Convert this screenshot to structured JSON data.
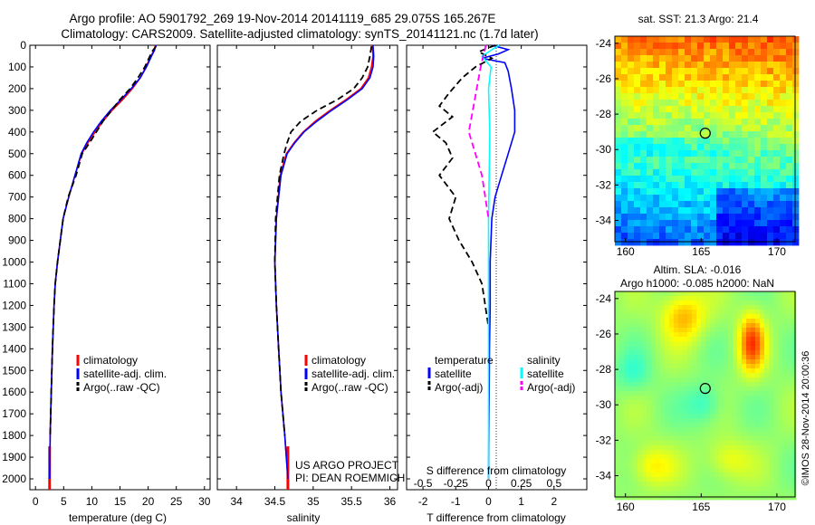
{
  "title_line1": "Argo profile: AO 5901792_269 19-Nov-2014 20141119_685 29.075S 165.267E",
  "title_line2": "Climatology: CARS2009. Satellite-adjusted climatology: synTS_20141121.nc (1.7d later)",
  "sst_title": "sat. SST: 21.3 Argo: 21.4",
  "sla_title1": "Altim. SLA: -0.016",
  "sla_title2": "Argo h1000: -0.085 h2000: NaN",
  "credit": "©IMOS 28-Nov-2014 20:00:36",
  "project_line1": "US ARGO PROJECT",
  "project_line2": "PI: DEAN ROEMMICH",
  "colors": {
    "climatology": "#ff0000",
    "satellite": "#0000ff",
    "argo": "#000000",
    "argo_s": "#ff00ff",
    "sat_s": "#00ffff"
  },
  "chart_data": [
    {
      "type": "line",
      "panel": "temperature",
      "xlabel": "temperature (deg C)",
      "ylim": [
        2050,
        0
      ],
      "xlim": [
        -1,
        31
      ],
      "xticks": [
        0,
        5,
        10,
        15,
        20,
        25,
        30
      ],
      "yticks": [
        0,
        100,
        200,
        300,
        400,
        500,
        600,
        700,
        800,
        900,
        1000,
        1100,
        1200,
        1300,
        1400,
        1500,
        1600,
        1700,
        1800,
        1900,
        2000
      ],
      "legend": [
        "climatology",
        "satellite-adj. clim.",
        "Argo(..raw -QC)"
      ],
      "series": [
        {
          "name": "climatology",
          "style": "solid",
          "color": "#ff0000",
          "x": [
            21.3,
            21.0,
            20.5,
            19.6,
            18.6,
            17.2,
            15.5,
            13.6,
            12.0,
            10.6,
            9.3,
            8.2,
            7.0,
            5.9,
            4.9,
            3.9,
            3.5,
            3.3,
            3.0,
            2.8,
            2.6,
            2.5
          ],
          "y": [
            0,
            25,
            50,
            100,
            150,
            200,
            250,
            300,
            350,
            400,
            450,
            500,
            600,
            700,
            800,
            1000,
            1100,
            1200,
            1400,
            1600,
            1800,
            2000
          ]
        },
        {
          "name": "satellite-adj. clim.",
          "style": "solid",
          "color": "#0000ff",
          "x": [
            21.4,
            21.1,
            20.6,
            19.7,
            18.6,
            17.0,
            15.2,
            13.3,
            11.7,
            10.3,
            9.1,
            8.1,
            7.0,
            5.9,
            4.9,
            3.9,
            3.5,
            3.3,
            3.0,
            2.8,
            2.6,
            2.5
          ],
          "y": [
            0,
            25,
            50,
            100,
            150,
            200,
            250,
            300,
            350,
            400,
            450,
            500,
            600,
            700,
            800,
            1000,
            1100,
            1200,
            1400,
            1600,
            1800,
            2000
          ]
        },
        {
          "name": "Argo(..raw -QC)",
          "style": "dash",
          "color": "#000000",
          "x": [
            21.4,
            20.8,
            20.3,
            19.4,
            18.2,
            16.8,
            15.0,
            13.5,
            12.0,
            10.8,
            9.6,
            8.3,
            7.2,
            5.8,
            4.9,
            3.9,
            3.5,
            3.3,
            3.0,
            2.8,
            2.6
          ],
          "y": [
            5,
            25,
            50,
            100,
            150,
            200,
            250,
            300,
            350,
            400,
            450,
            500,
            600,
            700,
            800,
            1000,
            1100,
            1200,
            1400,
            1600,
            1800
          ]
        }
      ]
    },
    {
      "type": "line",
      "panel": "salinity",
      "xlabel": "salinity",
      "ylim": [
        2050,
        0
      ],
      "xlim": [
        33.75,
        36.1
      ],
      "xticks": [
        34,
        34.5,
        35,
        35.5,
        36
      ],
      "xticklabels": [
        "34",
        "34.5",
        "35",
        "35.5",
        "36"
      ],
      "legend": [
        "climatology",
        "satellite-adj. clim.",
        "Argo(..raw -QC)"
      ],
      "series": [
        {
          "name": "climatology",
          "style": "solid",
          "color": "#ff0000",
          "x": [
            35.77,
            35.78,
            35.76,
            35.72,
            35.62,
            35.43,
            35.22,
            35.03,
            34.87,
            34.75,
            34.65,
            34.57,
            34.52,
            34.5,
            34.52,
            34.55,
            34.58,
            34.63,
            34.67
          ],
          "y": [
            0,
            50,
            100,
            150,
            200,
            250,
            300,
            350,
            400,
            450,
            500,
            600,
            800,
            1000,
            1200,
            1400,
            1600,
            1800,
            2000
          ]
        },
        {
          "name": "satellite-adj. clim.",
          "style": "solid",
          "color": "#0000ff",
          "x": [
            35.78,
            35.79,
            35.78,
            35.74,
            35.64,
            35.45,
            35.24,
            35.05,
            34.88,
            34.76,
            34.66,
            34.58,
            34.52,
            34.5,
            34.52,
            34.55,
            34.58,
            34.63,
            34.67
          ],
          "y": [
            0,
            50,
            100,
            150,
            200,
            250,
            300,
            350,
            400,
            450,
            500,
            600,
            800,
            1000,
            1200,
            1400,
            1600,
            1800,
            2000
          ]
        },
        {
          "name": "Argo(..raw -QC)",
          "style": "dash",
          "color": "#000000",
          "x": [
            35.76,
            35.74,
            35.71,
            35.64,
            35.53,
            35.32,
            35.05,
            34.84,
            34.71,
            34.66,
            34.62,
            34.56,
            34.51,
            34.5,
            34.52,
            34.55,
            34.58,
            34.63
          ],
          "y": [
            5,
            50,
            100,
            150,
            200,
            250,
            300,
            350,
            400,
            450,
            500,
            600,
            800,
            1000,
            1200,
            1400,
            1600,
            1800
          ]
        }
      ]
    },
    {
      "type": "line",
      "panel": "difference",
      "xlabel_top": "S difference from climatology",
      "xlabel_bottom": "T difference from climatology",
      "ylim": [
        2050,
        0
      ],
      "xlim": [
        -2.5,
        3
      ],
      "xticks": [
        -2,
        -1,
        0,
        1,
        2
      ],
      "xticks_top": [
        -0.5,
        -0.25,
        0,
        0.25,
        0.5
      ],
      "xticklabels_top": [
        "-0.5",
        "-0.25",
        "0",
        "0.25",
        "0.5"
      ],
      "legend": [
        "temperature",
        "satellite",
        "Argo(-adj)",
        "salinity",
        "satellite",
        "Argo(-adj)"
      ],
      "series": [
        {
          "name": "temperature satellite",
          "style": "solid",
          "color": "#0000ff",
          "x": [
            0.1,
            0.6,
            0.3,
            -0.2,
            0.5,
            0.6,
            0.7,
            0.8,
            0.8,
            0.6,
            0.4,
            0.2,
            0.1,
            0.05,
            0.05,
            0.03,
            0.02,
            0.01,
            0.0
          ],
          "y": [
            0,
            20,
            40,
            60,
            80,
            120,
            200,
            300,
            400,
            500,
            600,
            700,
            800,
            1000,
            1200,
            1400,
            1600,
            1800,
            2000
          ]
        },
        {
          "name": "temperature Argo(-adj)",
          "style": "dash",
          "color": "#000000",
          "x": [
            0.2,
            -0.3,
            0.1,
            -0.4,
            -0.8,
            -1.2,
            -1.5,
            -1.1,
            -1.7,
            -1.3,
            -1.1,
            -1.5,
            -1.0,
            -1.2,
            -0.9,
            -0.5,
            -0.2,
            0.0
          ],
          "y": [
            0,
            30,
            60,
            100,
            150,
            220,
            280,
            330,
            400,
            450,
            520,
            600,
            700,
            800,
            900,
            1000,
            1100,
            1300
          ]
        },
        {
          "name": "salinity satellite",
          "style": "solid",
          "color": "#00ffff",
          "x": [
            0.08,
            -0.05,
            0.02,
            0.0,
            0.01,
            0.0,
            0.0,
            0.0
          ],
          "y": [
            0,
            50,
            100,
            200,
            400,
            800,
            1400,
            2000
          ]
        },
        {
          "name": "salinity Argo(-adj)",
          "style": "dash",
          "color": "#ff00ff",
          "x": [
            -0.02,
            -0.06,
            -0.09,
            -0.12,
            -0.15,
            -0.1,
            -0.05,
            0.0
          ],
          "y": [
            0,
            100,
            200,
            300,
            400,
            500,
            600,
            800
          ]
        }
      ]
    },
    {
      "type": "heatmap",
      "panel": "sst_map",
      "title": "sat. SST: 21.3 Argo: 21.4",
      "xlim": [
        159.3,
        171.2
      ],
      "ylim": [
        -35.2,
        -23.6
      ],
      "xticks": [
        160,
        165,
        170
      ],
      "yticks": [
        -24,
        -26,
        -28,
        -30,
        -32,
        -34
      ],
      "marker": {
        "lon": 165.267,
        "lat": -29.075
      }
    },
    {
      "type": "heatmap",
      "panel": "sla_map",
      "title": "Argo h1000: -0.085 h2000: NaN",
      "xlim": [
        159.3,
        171.2
      ],
      "ylim": [
        -35.2,
        -23.6
      ],
      "xticks": [
        160,
        165,
        170
      ],
      "yticks": [
        -24,
        -26,
        -28,
        -30,
        -32,
        -34
      ],
      "marker": {
        "lon": 165.267,
        "lat": -29.075
      }
    }
  ]
}
